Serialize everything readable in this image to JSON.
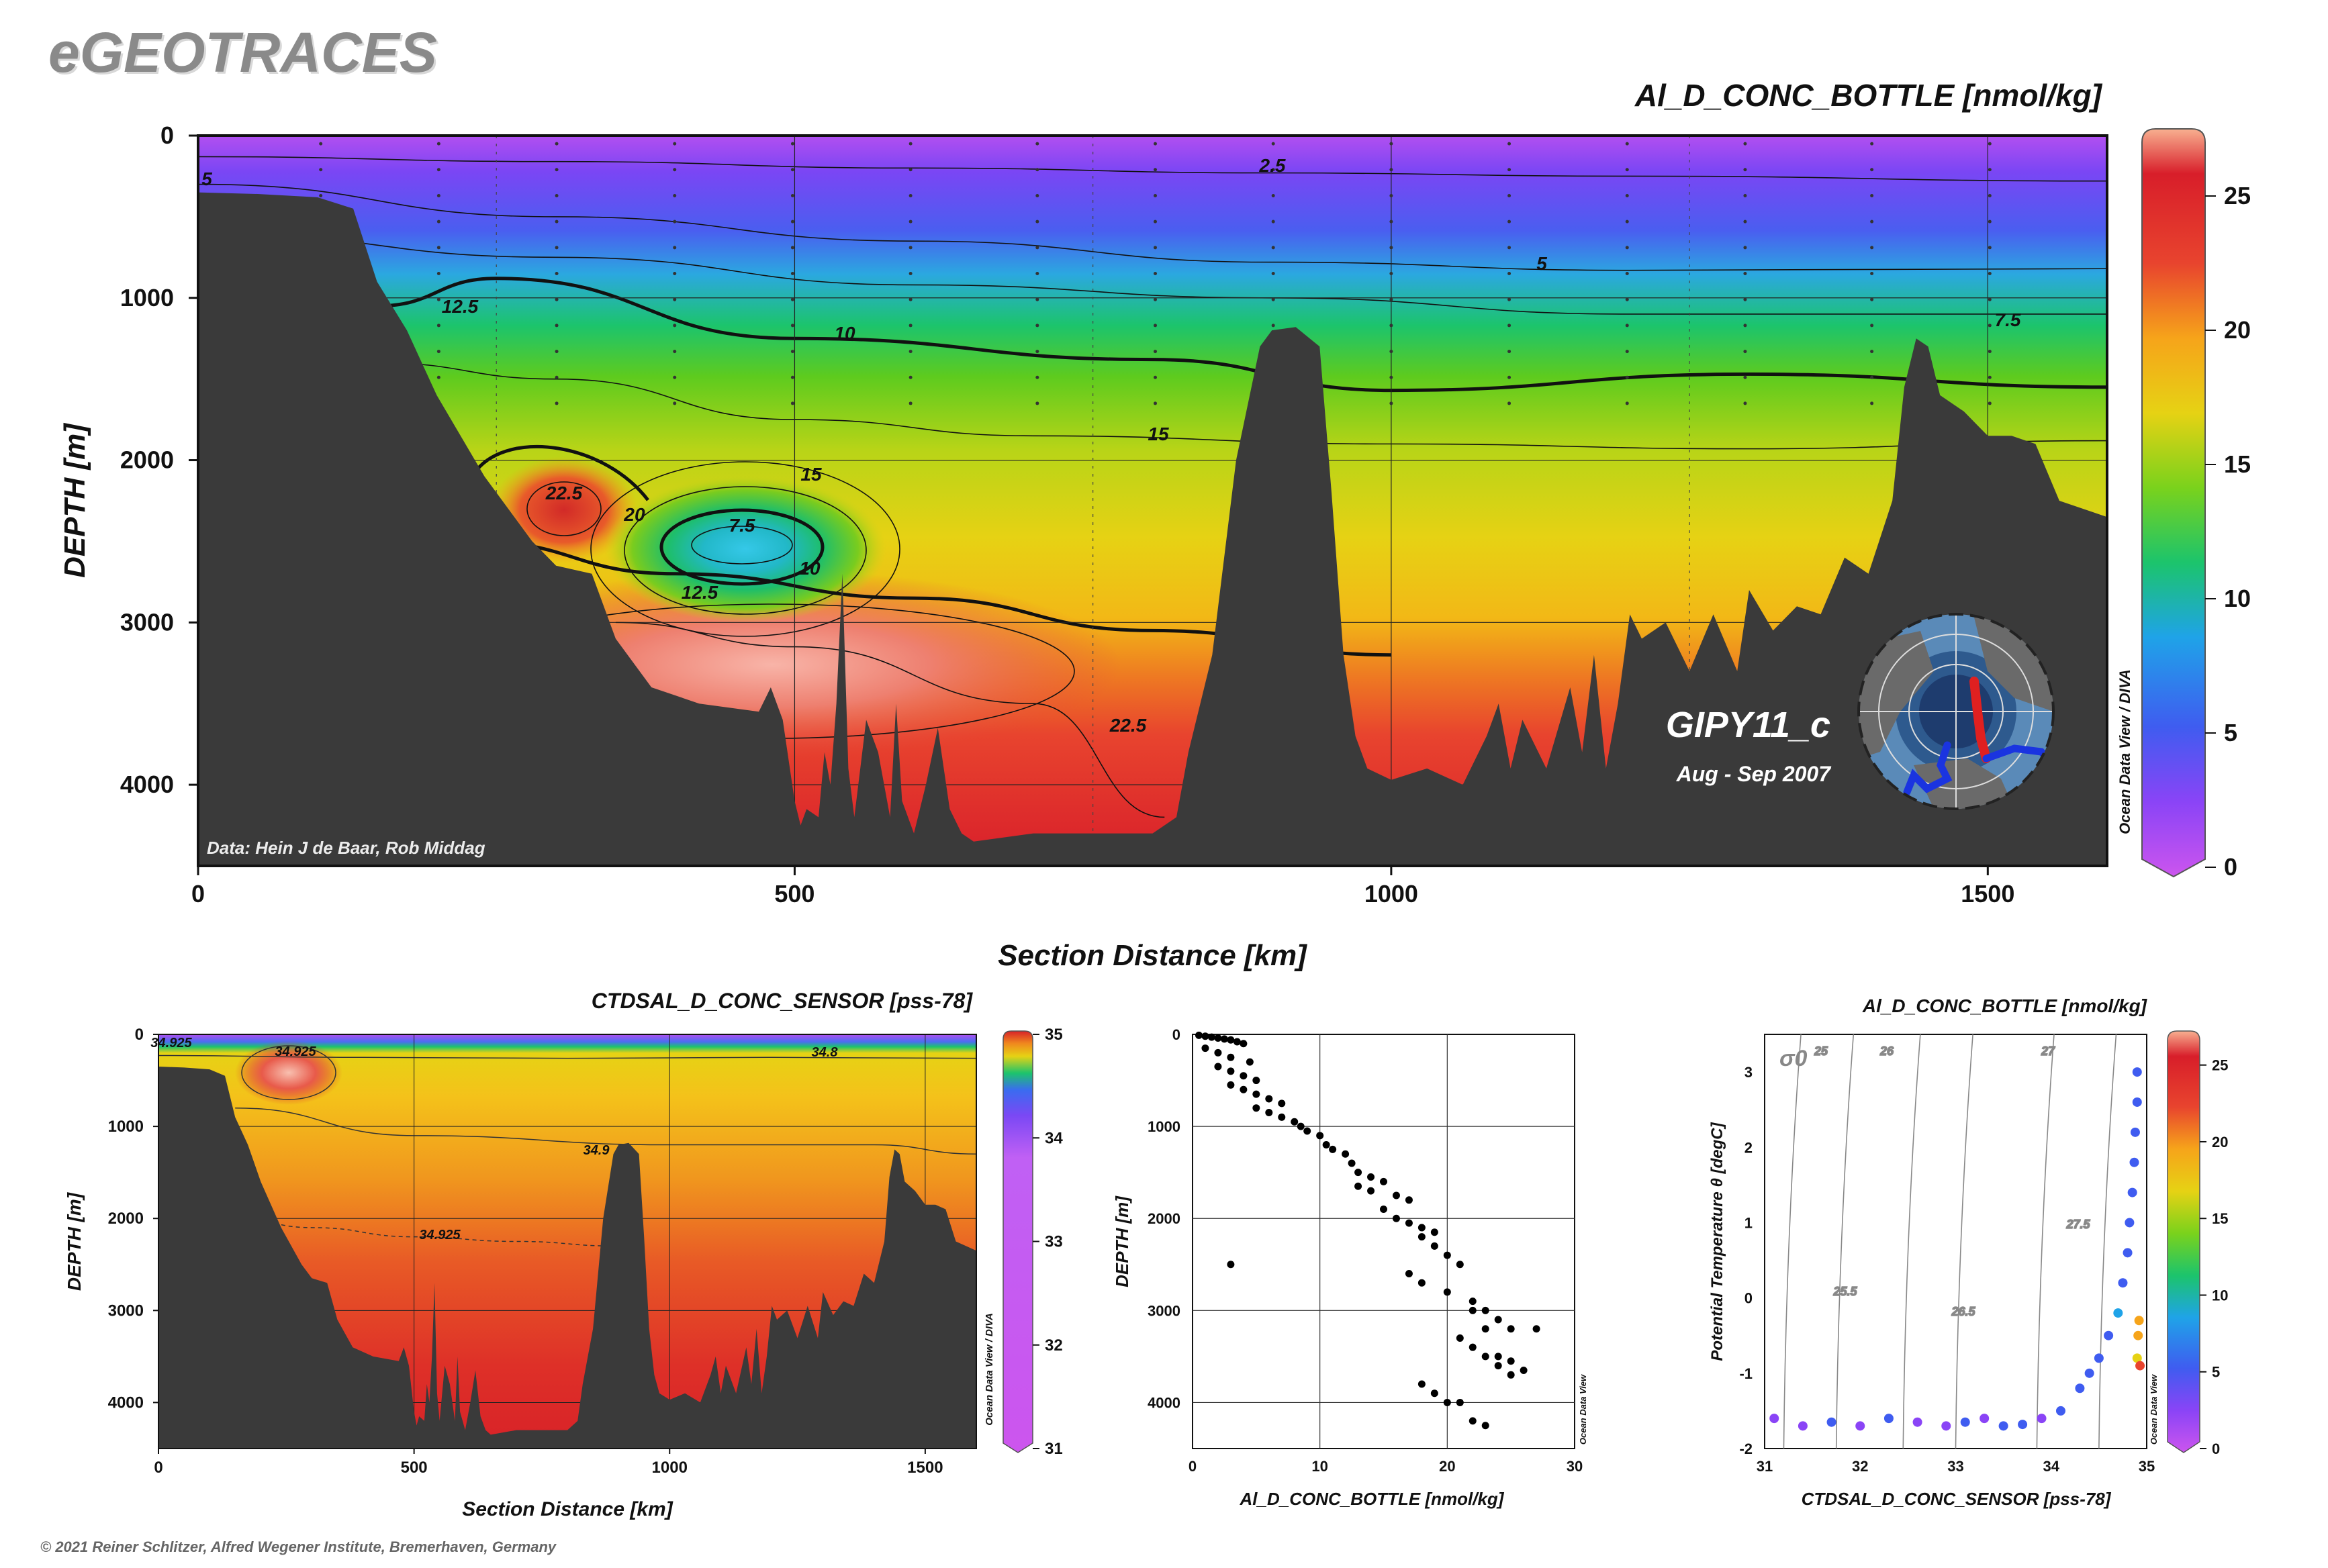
{
  "brand": "eGEOTRACES",
  "copyright": "© 2021 Reiner Schlitzer, Alfred Wegener Institute, Bremerhaven, Germany",
  "main": {
    "title": "Al_D_CONC_BOTTLE [nmol/kg]",
    "xlabel": "Section Distance [km]",
    "ylabel": "DEPTH [m]",
    "data_credit": "Data: Hein J de Baar, Rob Middag",
    "cruise": "GIPY11_c",
    "period": "Aug - Sep 2007",
    "odv_credit": "Ocean Data View / DIVA",
    "xticks": [
      "0",
      "500",
      "1000",
      "1500"
    ],
    "yticks": [
      "0",
      "1000",
      "2000",
      "3000",
      "4000"
    ],
    "colorbar_ticks": [
      "0",
      "5",
      "10",
      "15",
      "20",
      "25"
    ],
    "contour_labels": [
      "2.5",
      "5",
      "5",
      "7.5",
      "10",
      "12.5",
      "15",
      "15",
      "20",
      "22.5",
      "7.5",
      "10",
      "12.5",
      "22.5"
    ]
  },
  "sal": {
    "title": "CTDSAL_D_CONC_SENSOR [pss-78]",
    "xlabel": "Section Distance [km]",
    "ylabel": "DEPTH [m]",
    "odv_credit": "Ocean Data View / DIVA",
    "xticks": [
      "0",
      "500",
      "1000",
      "1500"
    ],
    "yticks": [
      "0",
      "1000",
      "2000",
      "3000",
      "4000"
    ],
    "colorbar_ticks": [
      "31",
      "32",
      "33",
      "34",
      "35"
    ],
    "contour_labels": [
      "34.925",
      "34.925",
      "34.8",
      "34.9",
      "34.925"
    ]
  },
  "profile": {
    "xlabel": "Al_D_CONC_BOTTLE [nmol/kg]",
    "ylabel": "DEPTH [m]",
    "odv_credit": "Ocean Data View",
    "xticks": [
      "0",
      "10",
      "20",
      "30"
    ],
    "yticks": [
      "0",
      "1000",
      "2000",
      "3000",
      "4000"
    ]
  },
  "ts": {
    "title": "Al_D_CONC_BOTTLE [nmol/kg]",
    "xlabel": "CTDSAL_D_CONC_SENSOR [pss-78]",
    "ylabel": "Potential Temperature θ [degC]",
    "sigma": "σ0",
    "odv_credit": "Ocean Data View",
    "xticks": [
      "31",
      "32",
      "33",
      "34",
      "35"
    ],
    "yticks": [
      "-2",
      "-1",
      "0",
      "1",
      "2",
      "3"
    ],
    "colorbar_ticks": [
      "0",
      "5",
      "10",
      "15",
      "20",
      "25"
    ],
    "isopycnal_labels": [
      "25",
      "26",
      "27",
      "25.5",
      "26.5",
      "27.5"
    ]
  },
  "colors": {
    "land": "#3a3a3a",
    "ramp": [
      "#cc55ee",
      "#8a44f6",
      "#3f5cf0",
      "#1fa3e8",
      "#1cc46c",
      "#7ad21c",
      "#e6d214",
      "#f6a41a",
      "#e8442e",
      "#d81e2a",
      "#f8b090"
    ]
  },
  "chart_data": [
    {
      "type": "heatmap",
      "title": "Al_D_CONC_BOTTLE [nmol/kg]",
      "xlabel": "Section Distance [km]",
      "ylabel": "DEPTH [m]",
      "xlim": [
        0,
        1600
      ],
      "ylim": [
        4500,
        0
      ],
      "colorbar_range": [
        0,
        27
      ],
      "bathymetry": {
        "x": [
          0,
          50,
          100,
          130,
          150,
          175,
          200,
          240,
          280,
          300,
          330,
          350,
          380,
          420,
          470,
          480,
          490,
          500,
          505,
          510,
          520,
          525,
          530,
          535,
          540,
          545,
          550,
          555,
          560,
          565,
          570,
          580,
          585,
          590,
          600,
          610,
          620,
          630,
          640,
          650,
          700,
          750,
          800,
          820,
          830,
          850,
          870,
          890,
          900,
          920,
          940,
          950,
          960,
          970,
          980,
          1000,
          1030,
          1060,
          1080,
          1090,
          1100,
          1110,
          1130,
          1150,
          1160,
          1170,
          1180,
          1190,
          1200,
          1210,
          1230,
          1250,
          1270,
          1290,
          1300,
          1320,
          1340,
          1360,
          1380,
          1400,
          1420,
          1430,
          1440,
          1450,
          1460,
          1480,
          1500,
          1520,
          1540,
          1560,
          1580,
          1600
        ],
        "y": [
          350,
          360,
          380,
          450,
          900,
          1200,
          1600,
          2100,
          2500,
          2650,
          2700,
          3100,
          3400,
          3500,
          3550,
          3400,
          3600,
          4100,
          4250,
          4150,
          4200,
          3800,
          4000,
          3500,
          2700,
          3900,
          4200,
          3900,
          3600,
          3700,
          3800,
          4200,
          3500,
          4100,
          4300,
          4000,
          3650,
          4150,
          4300,
          4350,
          4300,
          4300,
          4300,
          4200,
          3800,
          3200,
          2000,
          1300,
          1200,
          1180,
          1300,
          2200,
          3200,
          3700,
          3900,
          3970,
          3900,
          4000,
          3700,
          3500,
          3900,
          3600,
          3900,
          3400,
          3800,
          3200,
          3900,
          3500,
          2950,
          3100,
          3000,
          3300,
          2950,
          3300,
          2800,
          3050,
          2900,
          2950,
          2600,
          2700,
          2250,
          1550,
          1250,
          1300,
          1600,
          1700,
          1850,
          1850,
          1900,
          2250,
          2300,
          2350
        ]
      },
      "contours": [
        {
          "level": 2.5,
          "x": [
            0,
            300,
            600,
            900,
            1200,
            1600
          ],
          "y": [
            130,
            160,
            200,
            230,
            250,
            280
          ]
        },
        {
          "level": 5,
          "x": [
            0,
            300,
            600,
            900,
            1200,
            1600
          ],
          "y": [
            300,
            500,
            650,
            780,
            830,
            820
          ]
        },
        {
          "level": 7.5,
          "x": [
            0,
            300,
            600,
            900,
            1200,
            1600
          ],
          "y": [
            600,
            750,
            920,
            1000,
            1100,
            1100
          ]
        },
        {
          "level": 10,
          "x": [
            150,
            250,
            500,
            800,
            1000,
            1300,
            1600
          ],
          "y": [
            1050,
            880,
            1250,
            1380,
            1570,
            1470,
            1550
          ]
        },
        {
          "level": 15,
          "x": [
            150,
            300,
            500,
            700,
            1000,
            1300,
            1600
          ],
          "y": [
            1400,
            1500,
            1750,
            1850,
            1900,
            1930,
            1880
          ]
        },
        {
          "level": 20,
          "x": [
            230,
            400,
            600,
            800,
            1000
          ],
          "y": [
            2500,
            2700,
            2850,
            3050,
            3200
          ]
        },
        {
          "level": 22.5,
          "x": [
            350,
            500,
            700,
            810
          ],
          "y": [
            3000,
            3150,
            3500,
            4200
          ]
        }
      ]
    },
    {
      "type": "heatmap",
      "title": "CTDSAL_D_CONC_SENSOR [pss-78]",
      "xlabel": "Section Distance [km]",
      "ylabel": "DEPTH [m]",
      "xlim": [
        0,
        1600
      ],
      "ylim": [
        4500,
        0
      ],
      "colorbar_range": [
        31,
        35
      ],
      "contours": [
        {
          "level": 34.8,
          "x": [
            0,
            400,
            800,
            1200,
            1600
          ],
          "y": [
            230,
            250,
            260,
            250,
            260
          ]
        },
        {
          "level": 34.9,
          "x": [
            150,
            500,
            1000,
            1400,
            1600
          ],
          "y": [
            800,
            1100,
            1200,
            1200,
            1300
          ]
        },
        {
          "level": 34.925,
          "x": [
            100,
            300,
            500,
            700,
            900
          ],
          "y": [
            1900,
            2100,
            2200,
            2250,
            2300
          ]
        }
      ]
    },
    {
      "type": "scatter",
      "xlabel": "Al_D_CONC_BOTTLE [nmol/kg]",
      "ylabel": "DEPTH [m]",
      "xlim": [
        0,
        30
      ],
      "ylim": [
        4500,
        0
      ],
      "x": [
        0.5,
        1,
        1.5,
        2,
        2.5,
        3,
        3.5,
        4,
        1,
        2,
        3,
        4.5,
        2,
        3,
        4,
        5,
        3,
        4,
        5,
        6,
        7,
        5,
        6,
        7,
        8,
        8.5,
        9,
        10,
        10.5,
        11,
        12,
        12.5,
        13,
        14,
        15,
        13,
        14,
        16,
        17,
        15,
        16,
        17,
        18,
        19,
        18,
        19,
        20,
        21,
        17,
        18,
        20,
        22,
        23,
        24,
        25,
        21,
        22,
        23,
        24,
        25,
        18,
        19,
        3,
        22,
        23,
        27,
        24,
        25,
        26,
        20,
        21,
        22,
        23
      ],
      "y": [
        10,
        20,
        30,
        40,
        50,
        60,
        80,
        100,
        150,
        200,
        250,
        300,
        350,
        400,
        450,
        500,
        550,
        600,
        650,
        700,
        750,
        800,
        850,
        900,
        950,
        1000,
        1050,
        1100,
        1200,
        1250,
        1300,
        1400,
        1500,
        1550,
        1600,
        1650,
        1700,
        1750,
        1800,
        1900,
        2000,
        2050,
        2100,
        2150,
        2200,
        2300,
        2400,
        2500,
        2600,
        2700,
        2800,
        2900,
        3000,
        3100,
        3200,
        3300,
        3400,
        3500,
        3600,
        3700,
        3800,
        3900,
        2500,
        3000,
        3200,
        3200,
        3500,
        3550,
        3650,
        4000,
        4000,
        4200,
        4250
      ]
    },
    {
      "type": "scatter",
      "title": "Al_D_CONC_BOTTLE [nmol/kg]",
      "xlabel": "CTDSAL_D_CONC_SENSOR [pss-78]",
      "ylabel": "Potential Temperature θ [degC]",
      "xlim": [
        31,
        35
      ],
      "ylim": [
        -2,
        3.5
      ],
      "colorbar_range": [
        0,
        27
      ],
      "isopycnals": [
        25,
        25.5,
        26,
        26.5,
        27,
        27.5
      ],
      "x": [
        31.1,
        31.4,
        31.7,
        32.0,
        32.3,
        32.6,
        32.9,
        33.1,
        33.3,
        33.5,
        33.7,
        33.9,
        34.1,
        34.3,
        34.4,
        34.5,
        34.6,
        34.7,
        34.75,
        34.8,
        34.82,
        34.85,
        34.87,
        34.88,
        34.9,
        34.9,
        34.9,
        34.91,
        34.92,
        34.93
      ],
      "y": [
        -1.6,
        -1.7,
        -1.65,
        -1.7,
        -1.6,
        -1.65,
        -1.7,
        -1.65,
        -1.6,
        -1.7,
        -1.68,
        -1.6,
        -1.5,
        -1.2,
        -1.0,
        -0.8,
        -0.5,
        -0.2,
        0.2,
        0.6,
        1.0,
        1.4,
        1.8,
        2.2,
        2.6,
        3.0,
        -0.8,
        -0.5,
        -0.3,
        -0.9
      ],
      "values": [
        4,
        4,
        5,
        4,
        5,
        4,
        4,
        5,
        4,
        5,
        5,
        4,
        5,
        6,
        5,
        6,
        5,
        7,
        6,
        6,
        5,
        5,
        6,
        5,
        6,
        6,
        15,
        18,
        20,
        22
      ]
    }
  ]
}
